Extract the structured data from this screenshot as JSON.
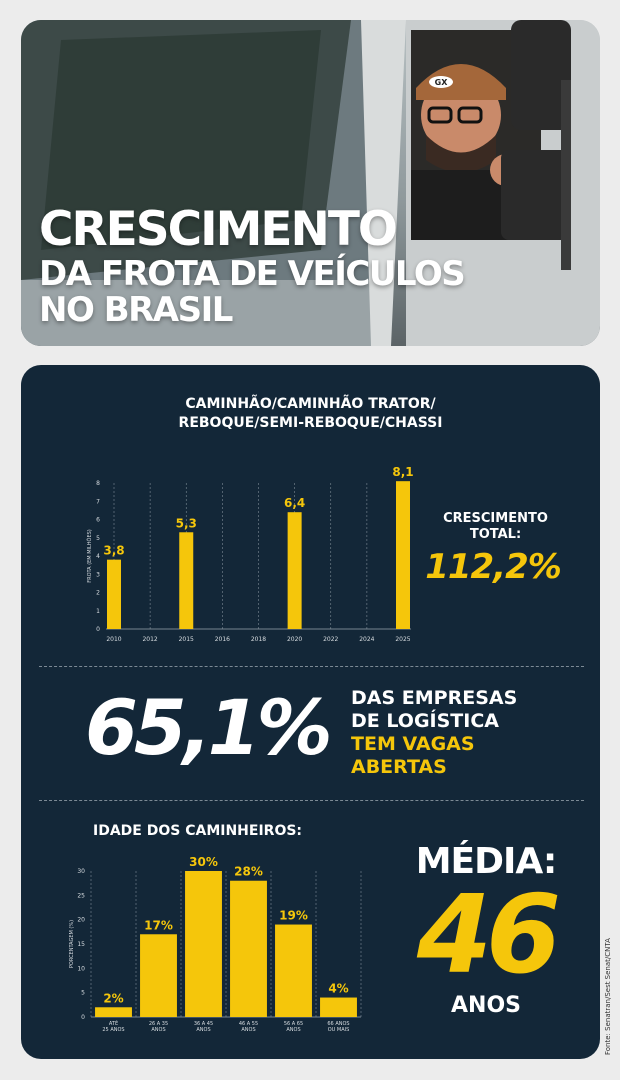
{
  "hero": {
    "title_line1": "CRESCIMENTO",
    "title_line2": "DA FROTA DE VEÍCULOS",
    "title_line3": "NO BRASIL",
    "cap_logo": "GX"
  },
  "fleet": {
    "heading_line1": "CAMINHÃO/CAMINHÃO TRATOR/",
    "heading_line2": "REBOQUE/SEMI-REBOQUE/CHASSI",
    "growth_label_line1": "CRESCIMENTO",
    "growth_label_line2": "TOTAL:",
    "growth_value": "112,2%"
  },
  "chart_data": [
    {
      "type": "bar",
      "ylabel": "FROTA (EM MILHÕES)",
      "ylim": [
        0,
        8
      ],
      "yticks": [
        "0",
        "1",
        "2",
        "3",
        "4",
        "5",
        "6",
        "7",
        "8"
      ],
      "x_ticks": [
        "2010",
        "2012",
        "2015",
        "2016",
        "2018",
        "2020",
        "2022",
        "2024",
        "2025"
      ],
      "categories": [
        "2010",
        "2015",
        "2020",
        "2025"
      ],
      "values": [
        3.8,
        5.3,
        6.4,
        8.1
      ],
      "data_labels": [
        "3,8",
        "5,3",
        "6,4",
        "8,1"
      ],
      "grid": "vertical dashed",
      "color": "#f5c60b"
    },
    {
      "type": "bar",
      "title": "IDADE DOS CAMINHEIROS:",
      "ylabel": "PORCENTAGEM (%)",
      "ylim": [
        0,
        30
      ],
      "yticks": [
        "0",
        "5",
        "10",
        "15",
        "20",
        "25",
        "30"
      ],
      "categories": [
        [
          "ATÉ",
          "25 ANOS"
        ],
        [
          "26 A 35",
          "ANOS"
        ],
        [
          "36 A 45",
          "ANOS"
        ],
        [
          "46 A 55",
          "ANOS"
        ],
        [
          "56 A 65",
          "ANOS"
        ],
        [
          "66 ANOS",
          "OU MAIS"
        ]
      ],
      "values": [
        2,
        17,
        30,
        28,
        19,
        4
      ],
      "data_labels": [
        "2%",
        "17%",
        "30%",
        "28%",
        "19%",
        "4%"
      ],
      "grid": "vertical dashed",
      "color": "#f5c60b"
    }
  ],
  "logistics": {
    "big_value": "65,1%",
    "line1": "DAS EMPRESAS",
    "line2": "DE LOGÍSTICA",
    "line3": "TEM VAGAS",
    "line4": "ABERTAS"
  },
  "age": {
    "media_label": "MÉDIA:",
    "media_value": "46",
    "media_unit": "ANOS"
  },
  "source": "Fonte: Senatran/Sest Senat/CNTA",
  "colors": {
    "accent": "#f5c60b",
    "panel": "#132738",
    "page_bg": "#ececec"
  }
}
